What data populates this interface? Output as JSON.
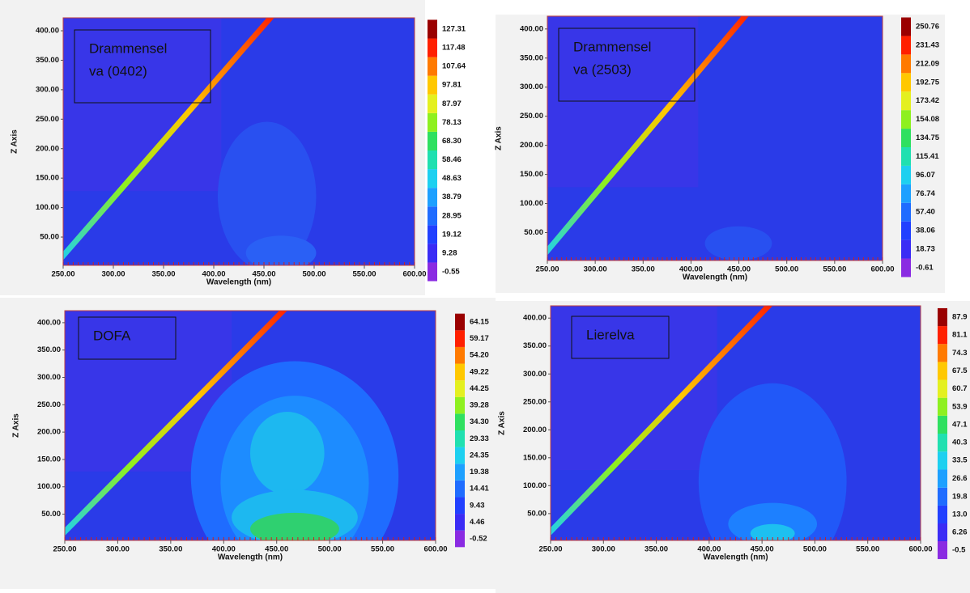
{
  "chart_data": [
    {
      "type": "contour",
      "annotation": [
        "Drammensel",
        "va (0402)"
      ],
      "xlabel": "Wavelength (nm)",
      "ylabel": "Z Axis",
      "xlim": [
        250,
        600
      ],
      "xticks": [
        {
          "value": 250,
          "label": "250.00"
        },
        {
          "value": 300,
          "label": "300.00"
        },
        {
          "value": 350,
          "label": "350.00"
        },
        {
          "value": 400,
          "label": "400.00"
        },
        {
          "value": 450,
          "label": "450.00"
        },
        {
          "value": 500,
          "label": "500.00"
        },
        {
          "value": 550,
          "label": "550.00"
        },
        {
          "value": 600,
          "label": "600.00"
        }
      ],
      "ylim": [
        2,
        422
      ],
      "yticks": [
        {
          "value": 50,
          "label": "50.00"
        },
        {
          "value": 100,
          "label": "100.00"
        },
        {
          "value": 150,
          "label": "150.00"
        },
        {
          "value": 200,
          "label": "200.00"
        },
        {
          "value": 250,
          "label": "250.00"
        },
        {
          "value": 300,
          "label": "300.00"
        },
        {
          "value": 350,
          "label": "350.00"
        },
        {
          "value": 400,
          "label": "400.00"
        }
      ],
      "clim": [
        -0.55,
        127.31
      ],
      "cticks": [
        -0.55,
        9.28,
        19.12,
        28.95,
        38.79,
        48.63,
        58.46,
        {
          "value": 68.3,
          "label": "68.30"
        },
        78.13,
        87.97,
        97.81,
        107.64,
        117.48,
        127.31
      ],
      "colorscale": [
        "#8a2be2",
        "#3b2cf5",
        "#2140ff",
        "#1f6cff",
        "#1da0ff",
        "#1dd0f0",
        "#20e0b0",
        "#2fe060",
        "#8ef020",
        "#e4f020",
        "#ffc800",
        "#ff7a00",
        "#ff2000",
        "#9a0000"
      ]
    },
    {
      "type": "contour",
      "annotation": [
        "Drammensel",
        "va (2503)"
      ],
      "xlabel": "Wavelength (nm)",
      "ylabel": "Z Axis",
      "xlim": [
        250,
        600
      ],
      "xticks": [
        {
          "value": 250,
          "label": "250.00"
        },
        {
          "value": 300,
          "label": "300.00"
        },
        {
          "value": 350,
          "label": "350.00"
        },
        {
          "value": 400,
          "label": "400.00"
        },
        {
          "value": 450,
          "label": "450.00"
        },
        {
          "value": 500,
          "label": "500.00"
        },
        {
          "value": 550,
          "label": "550.00"
        },
        {
          "value": 600,
          "label": "600.00"
        }
      ],
      "ylim": [
        2,
        422
      ],
      "yticks": [
        {
          "value": 50,
          "label": "50.00"
        },
        {
          "value": 100,
          "label": "100.00"
        },
        {
          "value": 150,
          "label": "150.00"
        },
        {
          "value": 200,
          "label": "200.00"
        },
        {
          "value": 250,
          "label": "250.00"
        },
        {
          "value": 300,
          "label": "300.00"
        },
        {
          "value": 350,
          "label": "350.00"
        },
        {
          "value": 400,
          "label": "400.00"
        }
      ],
      "clim": [
        -0.61,
        250.76
      ],
      "cticks": [
        -0.61,
        18.73,
        38.06,
        {
          "value": 57.4,
          "label": "57.40"
        },
        76.74,
        96.07,
        115.41,
        134.75,
        154.08,
        173.42,
        192.75,
        212.09,
        231.43,
        250.76
      ],
      "colorscale": [
        "#8a2be2",
        "#3b2cf5",
        "#2140ff",
        "#1f6cff",
        "#1da0ff",
        "#1dd0f0",
        "#20e0b0",
        "#2fe060",
        "#8ef020",
        "#e4f020",
        "#ffc800",
        "#ff7a00",
        "#ff2000",
        "#9a0000"
      ]
    },
    {
      "type": "contour",
      "annotation": [
        "DOFA"
      ],
      "xlabel": "Wavelength (nm)",
      "ylabel": "Z Axis",
      "xlim": [
        250,
        600
      ],
      "xticks": [
        {
          "value": 250,
          "label": "250.00"
        },
        {
          "value": 300,
          "label": "300.00"
        },
        {
          "value": 350,
          "label": "350.00"
        },
        {
          "value": 400,
          "label": "400.00"
        },
        {
          "value": 450,
          "label": "450.00"
        },
        {
          "value": 500,
          "label": "500.00"
        },
        {
          "value": 550,
          "label": "550.00"
        },
        {
          "value": 600,
          "label": "600.00"
        }
      ],
      "ylim": [
        2,
        422
      ],
      "yticks": [
        {
          "value": 50,
          "label": "50.00"
        },
        {
          "value": 100,
          "label": "100.00"
        },
        {
          "value": 150,
          "label": "150.00"
        },
        {
          "value": 200,
          "label": "200.00"
        },
        {
          "value": 250,
          "label": "250.00"
        },
        {
          "value": 300,
          "label": "300.00"
        },
        {
          "value": 350,
          "label": "350.00"
        },
        {
          "value": 400,
          "label": "400.00"
        }
      ],
      "clim": [
        -0.52,
        64.15
      ],
      "cticks": [
        -0.52,
        4.46,
        9.43,
        14.41,
        19.38,
        24.35,
        29.33,
        {
          "value": 34.3,
          "label": "34.30"
        },
        39.28,
        44.25,
        49.22,
        {
          "value": 54.2,
          "label": "54.20"
        },
        59.17,
        64.15
      ],
      "colorscale": [
        "#8a2be2",
        "#3b2cf5",
        "#2140ff",
        "#1f6cff",
        "#1da0ff",
        "#1dd0f0",
        "#20e0b0",
        "#2fe060",
        "#8ef020",
        "#e4f020",
        "#ffc800",
        "#ff7a00",
        "#ff2000",
        "#9a0000"
      ]
    },
    {
      "type": "contour",
      "annotation": [
        "Lierelva"
      ],
      "xlabel": "Wavelength (nm)",
      "ylabel": "Z Axis",
      "xlim": [
        250,
        600
      ],
      "xticks": [
        {
          "value": 250,
          "label": "250.00"
        },
        {
          "value": 300,
          "label": "300.00"
        },
        {
          "value": 350,
          "label": "350.00"
        },
        {
          "value": 400,
          "label": "400.00"
        },
        {
          "value": 450,
          "label": "450.00"
        },
        {
          "value": 500,
          "label": "500.00"
        },
        {
          "value": 550,
          "label": "550.00"
        },
        {
          "value": 600,
          "label": "600.00"
        }
      ],
      "ylim": [
        2,
        422
      ],
      "yticks": [
        {
          "value": 50,
          "label": "50.00"
        },
        {
          "value": 100,
          "label": "100.00"
        },
        {
          "value": 150,
          "label": "150.00"
        },
        {
          "value": 200,
          "label": "200.00"
        },
        {
          "value": 250,
          "label": "250.00"
        },
        {
          "value": 300,
          "label": "300.00"
        },
        {
          "value": 350,
          "label": "350.00"
        },
        {
          "value": 400,
          "label": "400.00"
        }
      ],
      "clim": [
        -0.5,
        87.9
      ],
      "cticks": [
        -0.5,
        6.26,
        {
          "value": 13,
          "label": "13.0"
        },
        19.8,
        26.6,
        33.5,
        40.3,
        47.1,
        53.9,
        60.7,
        67.5,
        74.3,
        81.1,
        87.9
      ],
      "colorscale": [
        "#8a2be2",
        "#3b2cf5",
        "#2140ff",
        "#1f6cff",
        "#1da0ff",
        "#1dd0f0",
        "#20e0b0",
        "#2fe060",
        "#8ef020",
        "#e4f020",
        "#ffc800",
        "#ff7a00",
        "#ff2000",
        "#9a0000"
      ]
    }
  ]
}
